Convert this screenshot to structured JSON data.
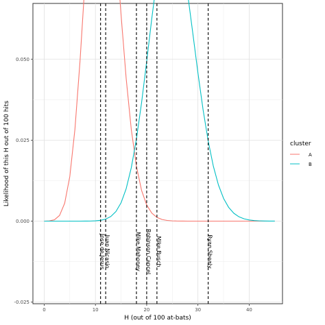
{
  "chart_data": {
    "type": "line",
    "xlabel": "H (out of 100 at-bats)",
    "ylabel": "Likelihood of this H out of 100 hits",
    "xlim": [
      -2.2,
      46.5
    ],
    "ylim": [
      -0.0255,
      0.0672
    ],
    "x_ticks": [
      0,
      10,
      20,
      30,
      40
    ],
    "y_ticks": [
      {
        "value": -0.025,
        "label": "-0.025"
      },
      {
        "value": 0,
        "label": "0.000"
      },
      {
        "value": 0.025,
        "label": "0.025"
      },
      {
        "value": 0.05,
        "label": "0.050"
      }
    ],
    "grid": true,
    "legend": {
      "title": "cluster",
      "position": "right",
      "entries": [
        {
          "name": "A",
          "color": "#F8766D"
        },
        {
          "name": "B",
          "color": "#00BFC4"
        }
      ]
    },
    "series": [
      {
        "name": "A",
        "color": "#F8766D",
        "distribution": "binomial",
        "n": 100,
        "p": 0.115,
        "x_range": [
          0,
          45
        ]
      },
      {
        "name": "B",
        "color": "#00BFC4",
        "distribution": "binomial",
        "n": 100,
        "p": 0.25,
        "x_range": [
          0,
          45
        ]
      }
    ],
    "vlines": [
      {
        "x": 11,
        "label": "Jose de Jesus"
      },
      {
        "x": 12,
        "label": "Juan Nicasio"
      },
      {
        "x": 18,
        "label": "Mike Mahoney"
      },
      {
        "x": 20,
        "label": "Robinson Cancel"
      },
      {
        "x": 22,
        "label": "Mike Busch"
      },
      {
        "x": 32,
        "label": "Ryan Shealy"
      }
    ]
  }
}
